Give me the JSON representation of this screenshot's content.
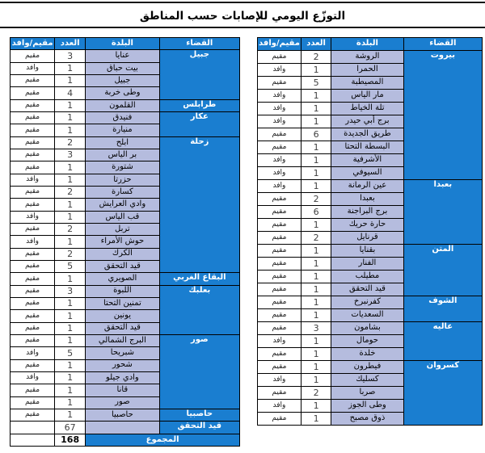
{
  "title": "التوزّع اليومي للإصابات حسب المناطق",
  "columns": {
    "district": "القضاء",
    "town": "البلدة",
    "count": "العدد",
    "status": "مقيم/وافد"
  },
  "right_table": {
    "groups": [
      {
        "district": "بيروت",
        "rows": [
          {
            "town": "الروشة",
            "count": "2",
            "status": "مقيم"
          },
          {
            "town": "الحمرا",
            "count": "1",
            "status": "وافد"
          },
          {
            "town": "المصيطبة",
            "count": "5",
            "status": "مقيم"
          },
          {
            "town": "مار الياس",
            "count": "1",
            "status": "وافد"
          },
          {
            "town": "تلة الخياط",
            "count": "1",
            "status": "وافد"
          },
          {
            "town": "برج أبي حيدر",
            "count": "1",
            "status": "وافد"
          },
          {
            "town": "طريق الجديدة",
            "count": "6",
            "status": "مقيم"
          },
          {
            "town": "البسطة التحتا",
            "count": "1",
            "status": "مقيم"
          },
          {
            "town": "الأشرفية",
            "count": "1",
            "status": "وافد"
          },
          {
            "town": "السيوفي",
            "count": "1",
            "status": "وافد"
          }
        ]
      },
      {
        "district": "بعبدا",
        "rows": [
          {
            "town": "عين الرمانة",
            "count": "1",
            "status": "وافد"
          },
          {
            "town": "بعبدا",
            "count": "2",
            "status": "مقيم"
          },
          {
            "town": "برج البراجنة",
            "count": "6",
            "status": "مقيم"
          },
          {
            "town": "حارة حريك",
            "count": "1",
            "status": "مقيم"
          },
          {
            "town": "قرنايل",
            "count": "2",
            "status": "مقيم"
          }
        ]
      },
      {
        "district": "المتن",
        "rows": [
          {
            "town": "بقنايا",
            "count": "1",
            "status": "مقيم"
          },
          {
            "town": "الفنار",
            "count": "1",
            "status": "مقيم"
          },
          {
            "town": "مطيلب",
            "count": "1",
            "status": "مقيم"
          },
          {
            "town": "قيد التحقق",
            "count": "1",
            "status": "مقيم"
          }
        ]
      },
      {
        "district": "الشوف",
        "rows": [
          {
            "town": "كفرنبرخ",
            "count": "1",
            "status": "مقيم"
          },
          {
            "town": "السعديات",
            "count": "1",
            "status": "مقيم"
          }
        ]
      },
      {
        "district": "عاليه",
        "rows": [
          {
            "town": "بشامون",
            "count": "3",
            "status": "مقيم"
          },
          {
            "town": "حومال",
            "count": "1",
            "status": "وافد"
          },
          {
            "town": "خلدة",
            "count": "1",
            "status": "مقيم"
          }
        ]
      },
      {
        "district": "كسروان",
        "rows": [
          {
            "town": "فيطرون",
            "count": "1",
            "status": "مقيم"
          },
          {
            "town": "كسليك",
            "count": "1",
            "status": "وافد"
          },
          {
            "town": "صربا",
            "count": "2",
            "status": "مقيم"
          },
          {
            "town": "وطى الجوز",
            "count": "1",
            "status": "وافد"
          },
          {
            "town": "ذوق مصبح",
            "count": "1",
            "status": "مقيم"
          }
        ]
      }
    ]
  },
  "left_table": {
    "groups": [
      {
        "district": "جبيل",
        "rows": [
          {
            "town": "عنايا",
            "count": "3",
            "status": "مقيم"
          },
          {
            "town": "بيت حباق",
            "count": "1",
            "status": "وافد"
          },
          {
            "town": "جبيل",
            "count": "1",
            "status": "مقيم"
          },
          {
            "town": "وطى خربة",
            "count": "4",
            "status": "مقيم"
          }
        ]
      },
      {
        "district": "طرابلس",
        "rows": [
          {
            "town": "القلمون",
            "count": "1",
            "status": "مقيم"
          }
        ]
      },
      {
        "district": "عكار",
        "rows": [
          {
            "town": "فنيدق",
            "count": "1",
            "status": "مقيم"
          },
          {
            "town": "منيارة",
            "count": "1",
            "status": "مقيم"
          }
        ]
      },
      {
        "district": "زحلة",
        "rows": [
          {
            "town": "ابلح",
            "count": "2",
            "status": "مقيم"
          },
          {
            "town": "بر الياس",
            "count": "3",
            "status": "مقيم"
          },
          {
            "town": "شتورة",
            "count": "1",
            "status": "مقيم"
          },
          {
            "town": "حزرتا",
            "count": "1",
            "status": "وافد"
          },
          {
            "town": "كسارة",
            "count": "2",
            "status": "مقيم"
          },
          {
            "town": "وادي العرايش",
            "count": "1",
            "status": "مقيم"
          },
          {
            "town": "قب الياس",
            "count": "1",
            "status": "وافد"
          },
          {
            "town": "تربل",
            "count": "2",
            "status": "مقيم"
          },
          {
            "town": "حوش الأمراء",
            "count": "1",
            "status": "وافد"
          },
          {
            "town": "الكرك",
            "count": "2",
            "status": "مقيم"
          },
          {
            "town": "قيد التحقق",
            "count": "5",
            "status": "مقيم"
          }
        ]
      },
      {
        "district": "البقاع الغربي",
        "rows": [
          {
            "town": "الصويري",
            "count": "1",
            "status": "مقيم"
          }
        ]
      },
      {
        "district": "بعلبك",
        "rows": [
          {
            "town": "اللبوة",
            "count": "3",
            "status": "مقيم"
          },
          {
            "town": "تمنين التحتا",
            "count": "1",
            "status": "مقيم"
          },
          {
            "town": "يونين",
            "count": "1",
            "status": "مقيم"
          },
          {
            "town": "قيد التحقق",
            "count": "1",
            "status": "مقيم"
          }
        ]
      },
      {
        "district": "صور",
        "rows": [
          {
            "town": "البرج الشمالي",
            "count": "1",
            "status": "مقيم"
          },
          {
            "town": "شبريحا",
            "count": "5",
            "status": "وافد"
          },
          {
            "town": "شحور",
            "count": "1",
            "status": "مقيم"
          },
          {
            "town": "وادي جيلو",
            "count": "1",
            "status": "وافد"
          },
          {
            "town": "قانا",
            "count": "1",
            "status": "مقيم"
          },
          {
            "town": "صور",
            "count": "1",
            "status": "مقيم"
          }
        ]
      },
      {
        "district": "حاصبيا",
        "rows": [
          {
            "town": "حاصبيا",
            "count": "1",
            "status": "مقيم"
          }
        ]
      }
    ],
    "pending_row": {
      "label": "قيد التحقق",
      "count": "67"
    },
    "total_row": {
      "label": "المجموع",
      "count": "168"
    }
  },
  "colors": {
    "header_blue": "#1a7ed0",
    "town_fill": "#b5bcde",
    "count_text": "#3f3f3f",
    "border": "#000000"
  }
}
